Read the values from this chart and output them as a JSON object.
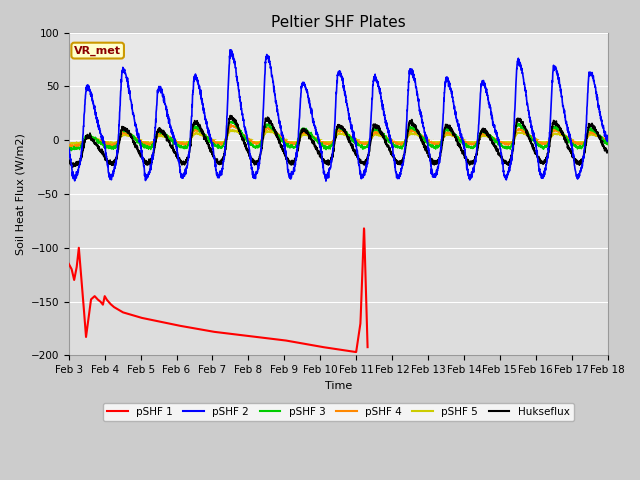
{
  "title": "Peltier SHF Plates",
  "xlabel": "Time",
  "ylabel": "Soil Heat Flux (W/m2)",
  "ylim": [
    -200,
    100
  ],
  "background_color": "#cccccc",
  "plot_bg_color": "#e8e8e8",
  "series_colors": {
    "pSHF 1": "#ff0000",
    "pSHF 2": "#0000ff",
    "pSHF 3": "#00cc00",
    "pSHF 4": "#ff8800",
    "pSHF 5": "#cccc00",
    "Hukseflux": "#000000"
  },
  "annotation_text": "VR_met",
  "xtick_labels": [
    "Feb 3",
    "Feb 4",
    "Feb 5",
    "Feb 6",
    "Feb 7",
    "Feb 8",
    "Feb 9",
    "Feb 10",
    "Feb 11",
    "Feb 12",
    "Feb 13",
    "Feb 14",
    "Feb 15",
    "Feb 16",
    "Feb 17",
    "Feb 18"
  ],
  "xtick_positions": [
    3,
    4,
    5,
    6,
    7,
    8,
    9,
    10,
    11,
    12,
    13,
    14,
    15,
    16,
    17,
    18
  ],
  "ytick_positions": [
    -200,
    -150,
    -100,
    -50,
    0,
    50,
    100
  ],
  "grid_color": "#ffffff",
  "lower_band_color": "#dddddd",
  "upper_band_color": "#e8e8e8"
}
